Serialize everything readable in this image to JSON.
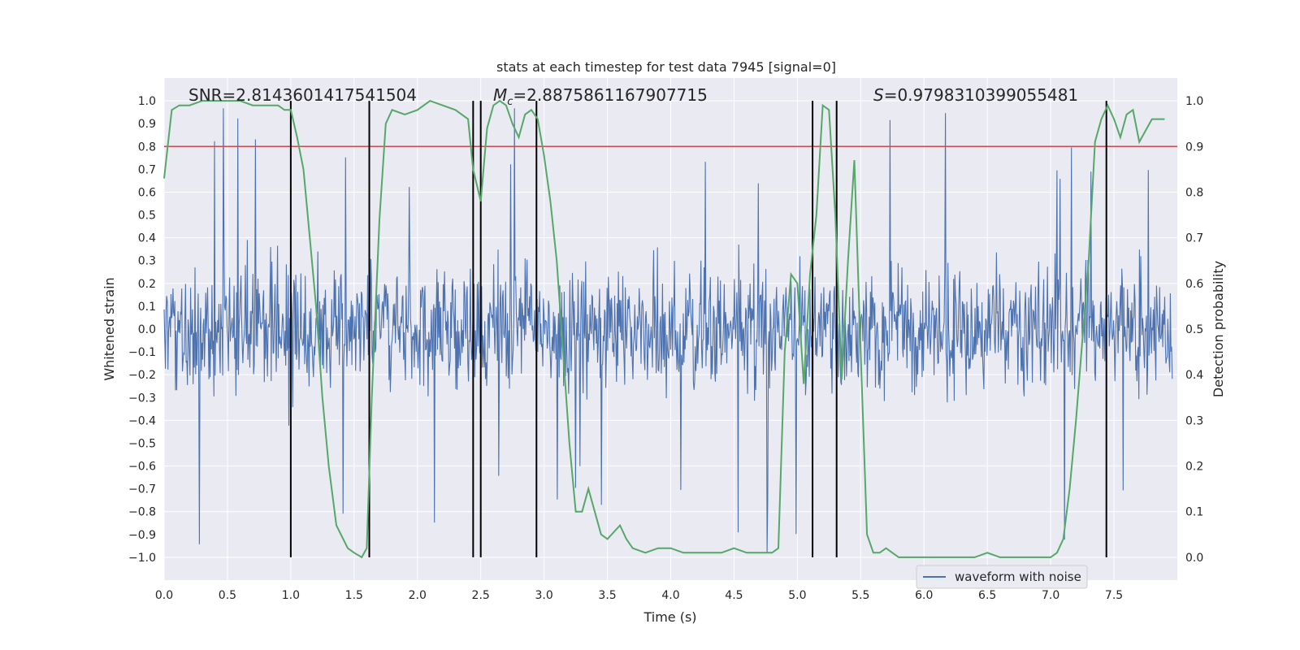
{
  "chart_data": {
    "type": "line",
    "title": "stats at each timestep for test data 7945 [signal=0]",
    "xlabel": "Time (s)",
    "ylabel_left": "Whitened strain",
    "ylabel_right": "Detection probability",
    "xlim": [
      0.0,
      8.0
    ],
    "ylim_left": [
      -1.1,
      1.1
    ],
    "ylim_right": [
      -0.05,
      1.05
    ],
    "x_ticks": [
      "0.0",
      "0.5",
      "1.0",
      "1.5",
      "2.0",
      "2.5",
      "3.0",
      "3.5",
      "4.0",
      "4.5",
      "5.0",
      "5.5",
      "6.0",
      "6.5",
      "7.0",
      "7.5"
    ],
    "y_left_ticks": [
      "1.0",
      "0.9",
      "0.8",
      "0.7",
      "0.6",
      "0.5",
      "0.4",
      "0.3",
      "0.2",
      "0.1",
      "0.0",
      "-0.1",
      "-0.2",
      "-0.3",
      "-0.4",
      "-0.5",
      "-0.6",
      "-0.7",
      "-0.8",
      "-0.9",
      "-1.0"
    ],
    "y_right_ticks": [
      "1.0",
      "0.9",
      "0.8",
      "0.7",
      "0.6",
      "0.5",
      "0.4",
      "0.3",
      "0.2",
      "0.1",
      "0.0"
    ],
    "annotations": {
      "snr": "SNR=2.8143601417541504",
      "mc_symbol": "M",
      "mc_sub": "c",
      "mc_value": "=2.8875861167907715",
      "s_symbol": "S",
      "s_value": "=0.9798310399055481"
    },
    "threshold_right": 0.9,
    "vertical_lines_x": [
      1.0,
      1.62,
      2.44,
      2.5,
      2.94,
      5.12,
      5.31,
      7.44
    ],
    "series": [
      {
        "name": "waveform with noise",
        "axis": "left",
        "color": "#4c72b0",
        "description": "dense whitened noise waveform spanning roughly -1.0 to 1.0"
      },
      {
        "name": "detection probability",
        "axis": "right",
        "color": "#55a868",
        "x": [
          0.0,
          0.06,
          0.12,
          0.2,
          0.3,
          0.4,
          0.5,
          0.6,
          0.7,
          0.8,
          0.9,
          0.95,
          1.0,
          1.05,
          1.1,
          1.15,
          1.2,
          1.25,
          1.3,
          1.36,
          1.45,
          1.5,
          1.56,
          1.6,
          1.64,
          1.7,
          1.75,
          1.8,
          1.9,
          2.0,
          2.1,
          2.2,
          2.3,
          2.4,
          2.44,
          2.5,
          2.55,
          2.6,
          2.65,
          2.7,
          2.75,
          2.8,
          2.85,
          2.9,
          2.95,
          3.0,
          3.05,
          3.1,
          3.15,
          3.2,
          3.25,
          3.3,
          3.35,
          3.4,
          3.45,
          3.5,
          3.6,
          3.65,
          3.7,
          3.8,
          3.9,
          4.0,
          4.1,
          4.2,
          4.3,
          4.4,
          4.5,
          4.6,
          4.7,
          4.8,
          4.85,
          4.9,
          4.95,
          5.0,
          5.05,
          5.1,
          5.15,
          5.2,
          5.25,
          5.3,
          5.35,
          5.4,
          5.45,
          5.5,
          5.55,
          5.6,
          5.65,
          5.7,
          5.75,
          5.8,
          5.9,
          6.0,
          6.1,
          6.2,
          6.3,
          6.4,
          6.5,
          6.6,
          6.7,
          6.8,
          6.9,
          7.0,
          7.05,
          7.1,
          7.15,
          7.2,
          7.3,
          7.35,
          7.4,
          7.45,
          7.5,
          7.55,
          7.6,
          7.65,
          7.7,
          7.8,
          7.9
        ],
        "values": [
          0.83,
          0.98,
          0.99,
          0.99,
          1.0,
          1.0,
          1.0,
          1.0,
          0.99,
          0.99,
          0.99,
          0.98,
          0.98,
          0.92,
          0.85,
          0.7,
          0.55,
          0.35,
          0.2,
          0.07,
          0.02,
          0.01,
          0.0,
          0.02,
          0.35,
          0.74,
          0.95,
          0.98,
          0.97,
          0.98,
          1.0,
          0.99,
          0.98,
          0.96,
          0.85,
          0.78,
          0.94,
          0.99,
          1.0,
          0.99,
          0.95,
          0.92,
          0.97,
          0.98,
          0.96,
          0.88,
          0.78,
          0.65,
          0.45,
          0.25,
          0.1,
          0.1,
          0.15,
          0.1,
          0.05,
          0.04,
          0.07,
          0.04,
          0.02,
          0.01,
          0.02,
          0.02,
          0.01,
          0.01,
          0.01,
          0.01,
          0.02,
          0.01,
          0.01,
          0.01,
          0.02,
          0.45,
          0.62,
          0.6,
          0.38,
          0.62,
          0.75,
          0.99,
          0.98,
          0.75,
          0.39,
          0.65,
          0.87,
          0.45,
          0.05,
          0.01,
          0.01,
          0.02,
          0.01,
          0.0,
          0.0,
          0.0,
          0.0,
          0.0,
          0.0,
          0.0,
          0.01,
          0.0,
          0.0,
          0.0,
          0.0,
          0.0,
          0.01,
          0.04,
          0.15,
          0.3,
          0.65,
          0.91,
          0.96,
          0.99,
          0.96,
          0.92,
          0.97,
          0.98,
          0.91,
          0.96,
          0.96
        ]
      }
    ],
    "legend": {
      "label": "waveform with noise",
      "placement": "lower-right"
    },
    "grid": true
  }
}
